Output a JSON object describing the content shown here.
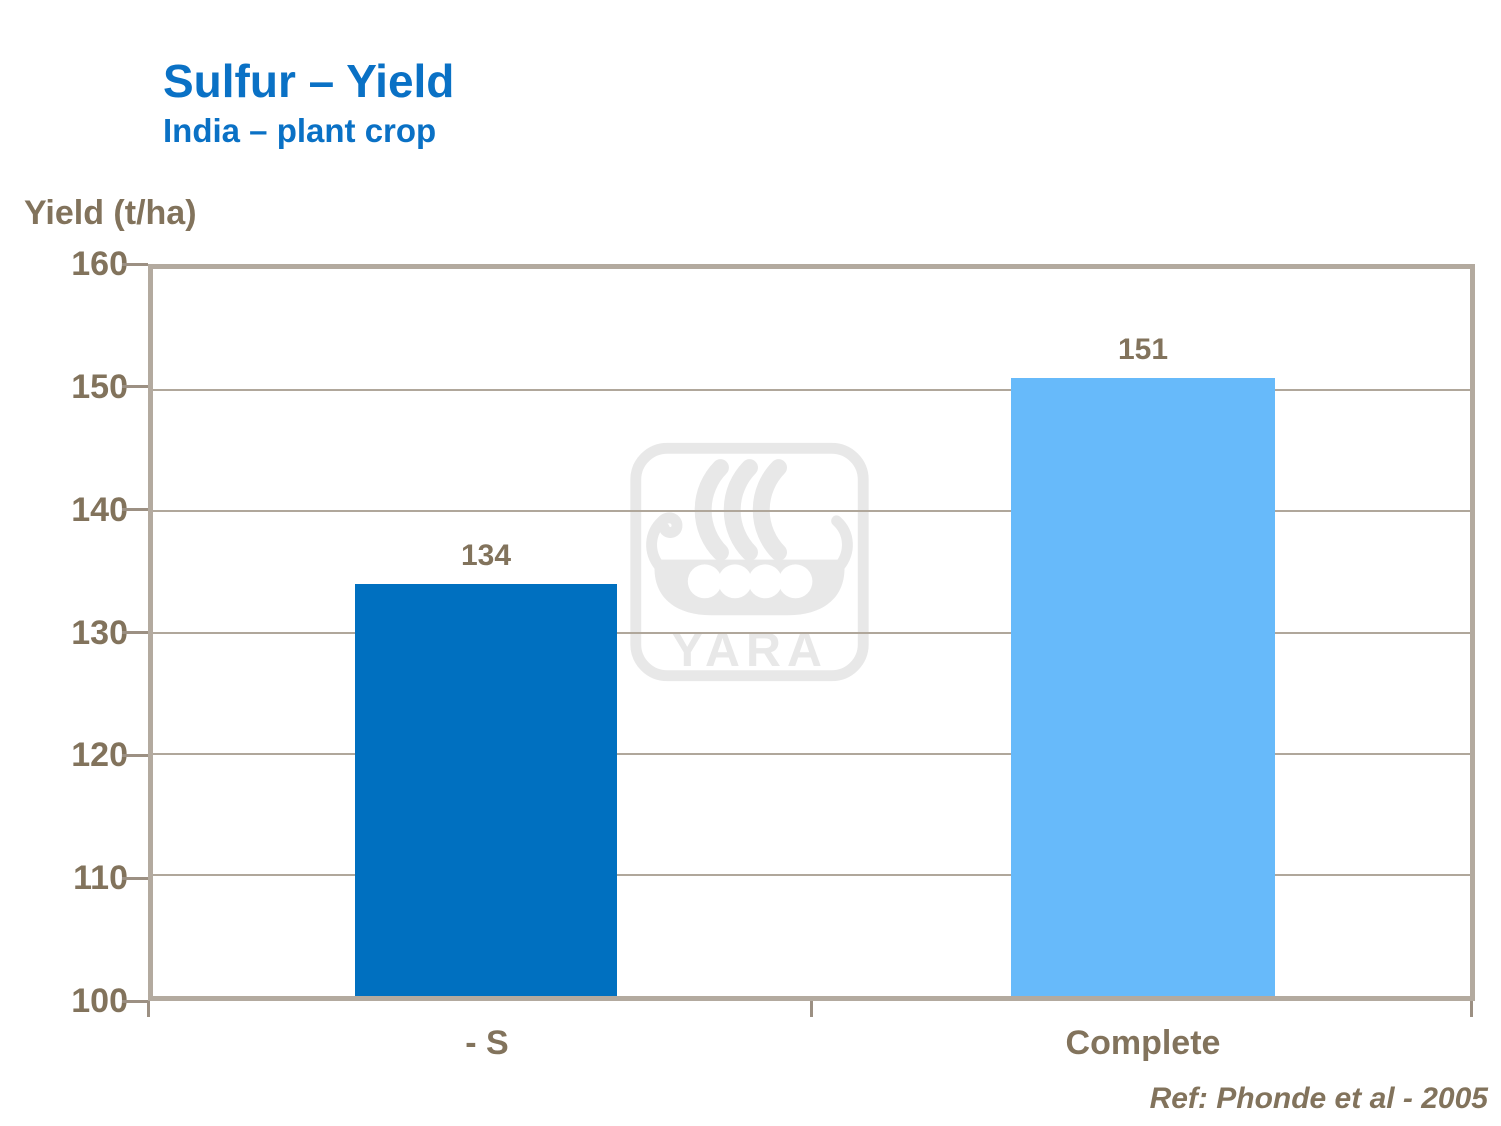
{
  "header": {
    "title": "Sulfur – Yield",
    "subtitle": "India – plant crop",
    "title_color": "#0A71C5"
  },
  "chart_data": {
    "type": "bar",
    "title": "Sulfur – Yield",
    "subtitle": "India – plant crop",
    "ylabel": "Yield (t/ha)",
    "xlabel": "",
    "categories": [
      "- S",
      "Complete"
    ],
    "values": [
      134,
      151
    ],
    "value_labels": [
      "134",
      "151"
    ],
    "bar_colors": [
      "#0070C0",
      "#67BAFA"
    ],
    "ylim": [
      100,
      160
    ],
    "yticks": [
      160,
      150,
      140,
      130,
      120,
      110,
      100
    ],
    "grid": true,
    "legend_position": "none"
  },
  "watermark": {
    "name": "yara-logo",
    "label": "YARA",
    "color": "#E8E8E8"
  },
  "footer": {
    "reference": "Ref: Phonde et al - 2005"
  },
  "colors": {
    "axis_text": "#82735C",
    "plot_border": "#B3AA9F",
    "gridline": "#B0A79B",
    "tick": "#9C9083"
  }
}
